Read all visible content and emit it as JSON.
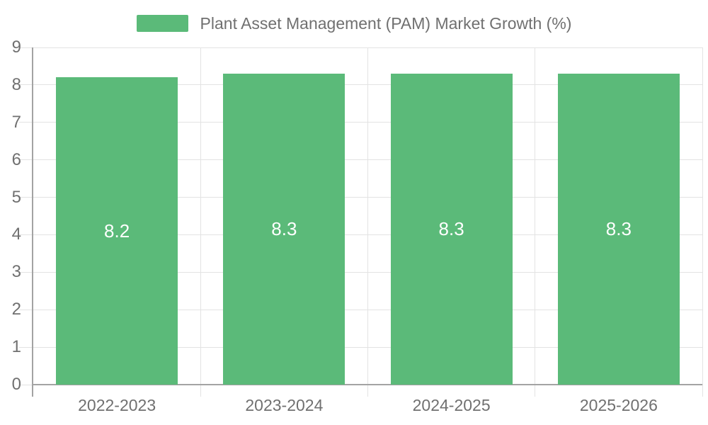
{
  "legend": {
    "item_label": "Plant Asset Management (PAM) Market Growth (%)"
  },
  "chart_data": {
    "type": "bar",
    "title": "Plant Asset Management (PAM) Market Growth (%)",
    "categories": [
      "2022-2023",
      "2023-2024",
      "2024-2025",
      "2025-2026"
    ],
    "values": [
      8.2,
      8.3,
      8.3,
      8.3
    ],
    "data_labels": [
      "8.2",
      "8.3",
      "8.3",
      "8.3"
    ],
    "xlabel": "",
    "ylabel": "",
    "ylim": [
      0,
      9
    ],
    "yticks": [
      "0",
      "1",
      "2",
      "3",
      "4",
      "5",
      "6",
      "7",
      "8",
      "9"
    ],
    "grid": true,
    "legend_position": "top-center",
    "data_label_position": "inside-middle",
    "colors": {
      "bar": "#5bba79",
      "axis_line": "#a3a3a3",
      "grid_line": "#e3e3e3",
      "text": "#707070",
      "data_label": "#ffffff",
      "background": "#ffffff"
    }
  }
}
